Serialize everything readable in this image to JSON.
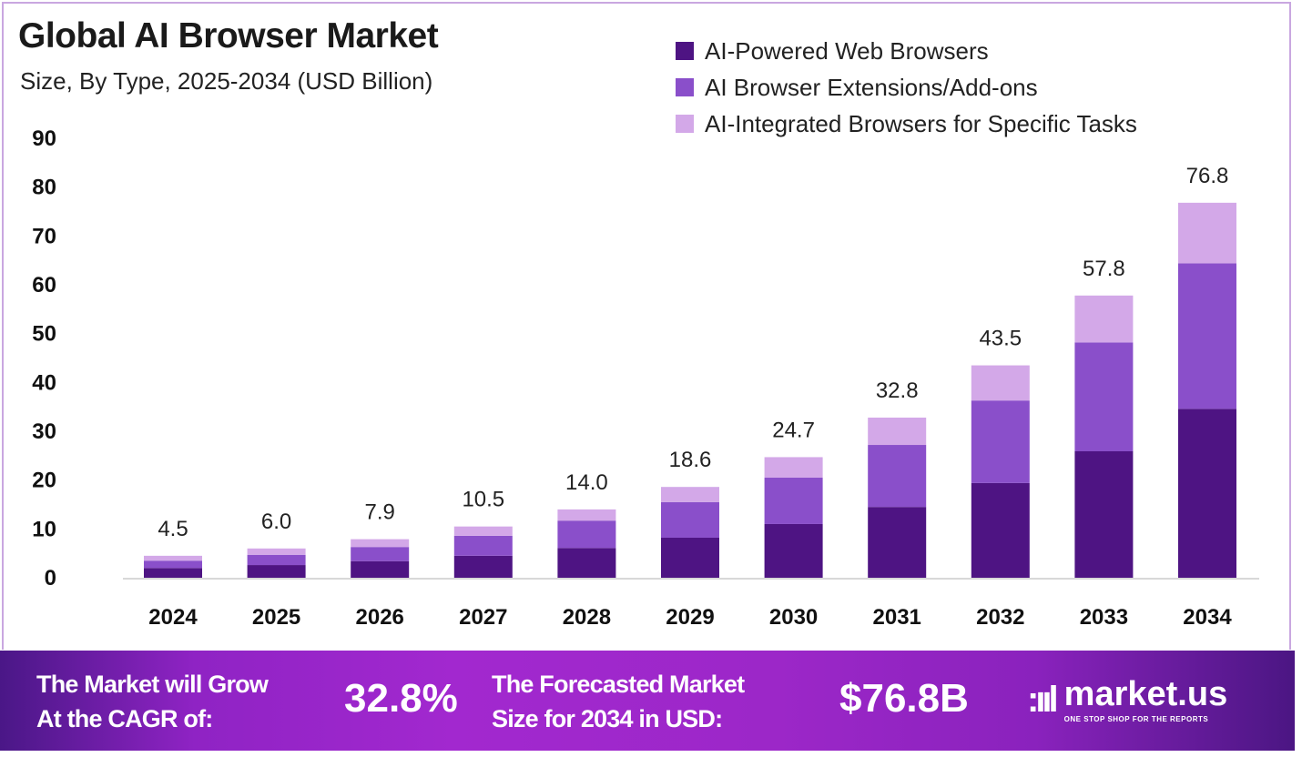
{
  "chart_data": {
    "type": "bar",
    "stacked": true,
    "title": "Global AI Browser Market",
    "subtitle": "Size, By Type, 2025-2034 (USD Billion)",
    "categories": [
      "2024",
      "2025",
      "2026",
      "2027",
      "2028",
      "2029",
      "2030",
      "2031",
      "2032",
      "2033",
      "2034"
    ],
    "series": [
      {
        "name": "AI-Powered Web Browsers",
        "color": "#4e1483",
        "values": [
          2.0,
          2.6,
          3.4,
          4.5,
          6.1,
          8.2,
          11.0,
          14.5,
          19.4,
          25.9,
          34.6
        ]
      },
      {
        "name": "AI Browser Extensions/Add-ons",
        "color": "#8a4fca",
        "values": [
          1.5,
          2.1,
          2.9,
          4.1,
          5.6,
          7.3,
          9.5,
          12.7,
          16.9,
          22.3,
          29.8
        ]
      },
      {
        "name": "AI-Integrated Browsers for Specific Tasks",
        "color": "#d3a8e8",
        "values": [
          1.0,
          1.3,
          1.6,
          1.9,
          2.3,
          3.1,
          4.2,
          5.6,
          7.2,
          9.6,
          12.4
        ]
      }
    ],
    "totals": [
      "4.5",
      "6.0",
      "7.9",
      "10.5",
      "14.0",
      "18.6",
      "24.7",
      "32.8",
      "43.5",
      "57.8",
      "76.8"
    ],
    "yticks": [
      "0",
      "10",
      "20",
      "30",
      "40",
      "50",
      "60",
      "70",
      "80",
      "90"
    ],
    "ylim": [
      0,
      90
    ],
    "xlabel": "",
    "ylabel": "",
    "grid": false,
    "legend_position": "top-right"
  },
  "banner": {
    "cagr_label_1": "The Market will Grow",
    "cagr_label_2": "At the CAGR of:",
    "cagr_value": "32.8%",
    "forecast_label_1": "The Forecasted Market",
    "forecast_label_2": "Size for 2034 in USD:",
    "forecast_value": "$76.8B",
    "brand": "market.us",
    "brand_tagline": "ONE STOP SHOP FOR THE REPORTS"
  }
}
